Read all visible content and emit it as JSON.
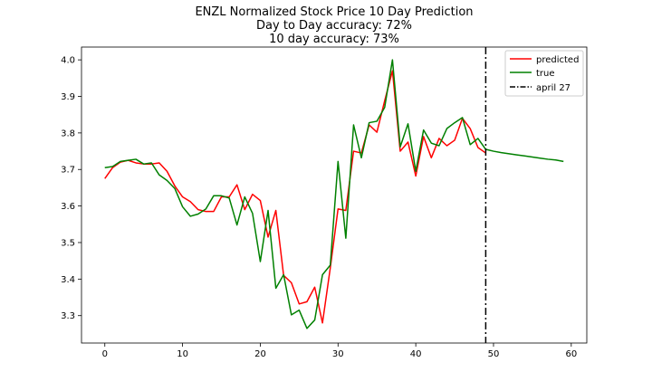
{
  "chart_data": {
    "type": "line",
    "title_lines": [
      "ENZL Normalized Stock Price 10 Day Prediction",
      "Day to Day accuracy: 72%",
      "10 day accuracy: 73%"
    ],
    "xlabel": "",
    "ylabel": "",
    "xlim": [
      -3,
      62
    ],
    "ylim": [
      3.225,
      4.035
    ],
    "xticks": [
      0,
      10,
      20,
      30,
      40,
      50,
      60
    ],
    "yticks": [
      3.3,
      3.4,
      3.5,
      3.6,
      3.7,
      3.8,
      3.9,
      4.0
    ],
    "ytick_labels": [
      "3.3",
      "3.4",
      "3.5",
      "3.6",
      "3.7",
      "3.8",
      "3.9",
      "4.0"
    ],
    "legend_position": "top-right",
    "vline": {
      "label": "april 27",
      "x": 49,
      "color": "#000000",
      "style": "dashdot"
    },
    "series": [
      {
        "name": "predicted",
        "color": "#ff0000",
        "x": [
          0,
          1,
          2,
          3,
          4,
          5,
          6,
          7,
          8,
          9,
          10,
          11,
          12,
          13,
          14,
          15,
          16,
          17,
          18,
          19,
          20,
          21,
          22,
          23,
          24,
          25,
          26,
          27,
          28,
          29,
          30,
          31,
          32,
          33,
          34,
          35,
          36,
          37,
          38,
          39,
          40,
          41,
          42,
          43,
          44,
          45,
          46,
          47,
          48,
          49
        ],
        "values": [
          3.675,
          3.705,
          3.72,
          3.725,
          3.718,
          3.715,
          3.715,
          3.718,
          3.695,
          3.655,
          3.625,
          3.612,
          3.59,
          3.585,
          3.585,
          3.625,
          3.625,
          3.658,
          3.59,
          3.632,
          3.615,
          3.515,
          3.588,
          3.41,
          3.39,
          3.332,
          3.338,
          3.378,
          3.28,
          3.43,
          3.592,
          3.588,
          3.75,
          3.745,
          3.822,
          3.802,
          3.888,
          3.97,
          3.75,
          3.775,
          3.682,
          3.79,
          3.732,
          3.785,
          3.765,
          3.78,
          3.84,
          3.812,
          3.76,
          3.745
        ]
      },
      {
        "name": "true",
        "color": "#008000",
        "x": [
          0,
          1,
          2,
          3,
          4,
          5,
          6,
          7,
          8,
          9,
          10,
          11,
          12,
          13,
          14,
          15,
          16,
          17,
          18,
          19,
          20,
          21,
          22,
          23,
          24,
          25,
          26,
          27,
          28,
          29,
          30,
          31,
          32,
          33,
          34,
          35,
          36,
          37,
          38,
          39,
          40,
          41,
          42,
          43,
          44,
          45,
          46,
          47,
          48,
          49,
          50,
          51,
          52,
          53,
          54,
          55,
          56,
          57,
          58,
          59
        ],
        "values": [
          3.705,
          3.708,
          3.722,
          3.725,
          3.728,
          3.715,
          3.718,
          3.685,
          3.67,
          3.648,
          3.598,
          3.572,
          3.578,
          3.592,
          3.628,
          3.628,
          3.622,
          3.548,
          3.625,
          3.58,
          3.448,
          3.588,
          3.375,
          3.412,
          3.302,
          3.315,
          3.265,
          3.288,
          3.412,
          3.438,
          3.722,
          3.512,
          3.822,
          3.732,
          3.828,
          3.832,
          3.87,
          4.0,
          3.762,
          3.825,
          3.695,
          3.808,
          3.772,
          3.765,
          3.812,
          3.828,
          3.842,
          3.768,
          3.785,
          3.755,
          3.75,
          3.746,
          3.743,
          3.74,
          3.737,
          3.734,
          3.731,
          3.728,
          3.726,
          3.722
        ]
      }
    ]
  }
}
